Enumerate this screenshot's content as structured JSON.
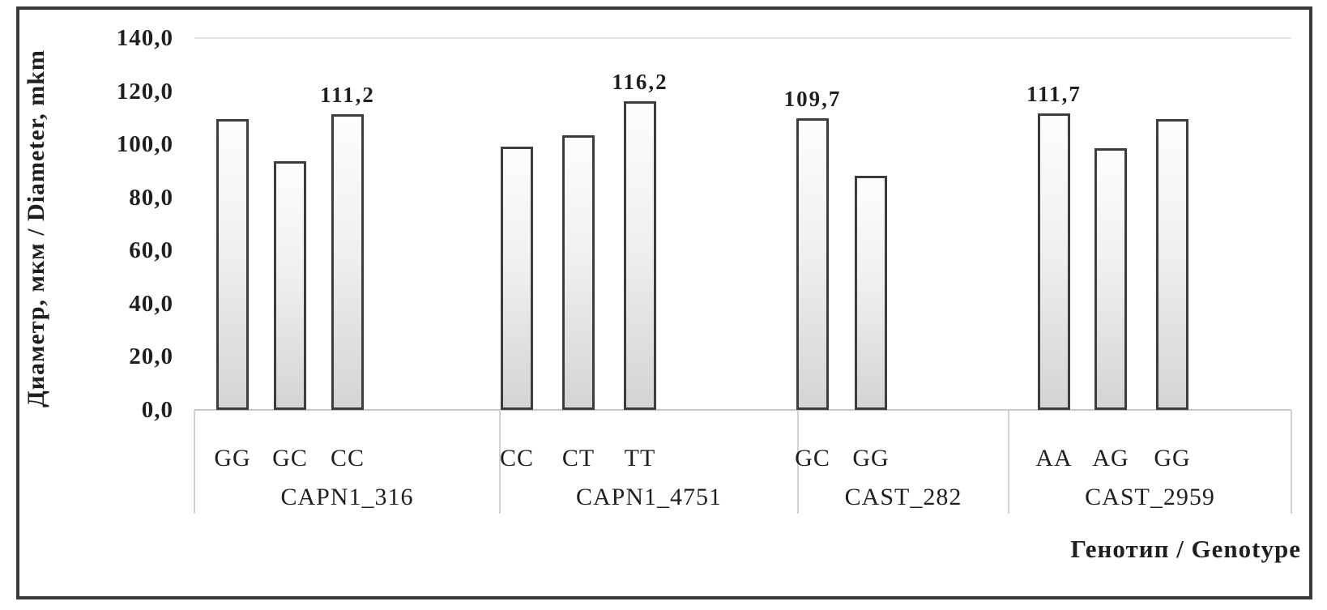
{
  "chart_data": {
    "type": "bar",
    "title": "",
    "ylabel": "Диаметр, мкм / Diameter, mkm",
    "xlabel": "Генотип / Genotype",
    "ylim": [
      0,
      140
    ],
    "yticks": [
      0,
      20,
      40,
      60,
      80,
      100,
      120,
      140
    ],
    "ytick_labels": [
      "0,0",
      "20,0",
      "40,0",
      "60,0",
      "80,0",
      "100,0",
      "120,0",
      "140,0"
    ],
    "legend": "none",
    "grid": "top-line-only",
    "groups": [
      {
        "name": "CAPN1_316",
        "categories": [
          "GG",
          "GC",
          "CC"
        ],
        "values": [
          109.5,
          93.5,
          111.2
        ],
        "value_labels": [
          "",
          "",
          "111,2"
        ]
      },
      {
        "name": "CAPN1_4751",
        "categories": [
          "CC",
          "CT",
          "TT"
        ],
        "values": [
          99.0,
          103.5,
          116.2
        ],
        "value_labels": [
          "",
          "",
          "116,2"
        ]
      },
      {
        "name": "CAST_282",
        "categories": [
          "GC",
          "GG"
        ],
        "values": [
          109.7,
          88.0
        ],
        "value_labels": [
          "109,7",
          ""
        ]
      },
      {
        "name": "CAST_2959",
        "categories": [
          "AA",
          "AG",
          "GG"
        ],
        "values": [
          111.7,
          98.5,
          109.5
        ],
        "value_labels": [
          "111,7",
          "",
          ""
        ]
      }
    ],
    "colors": {
      "bar_fill_top": "#fdfdfd",
      "bar_fill_bottom": "#d4d4d4",
      "bar_border": "#3d3d3d",
      "frame_border": "#3a3a3a",
      "axis_line": "#c9c9c9",
      "divider": "#d2d2d2",
      "gridline": "#e4e4e4",
      "text": "#1f1f1f"
    }
  }
}
